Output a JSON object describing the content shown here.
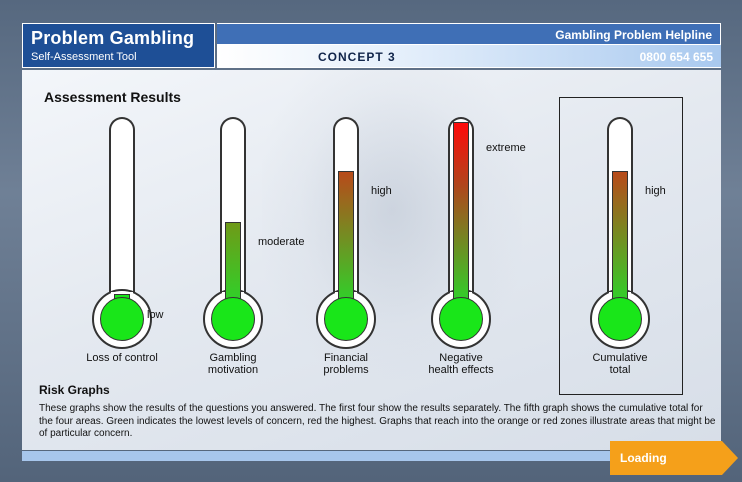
{
  "header": {
    "title": "Problem Gambling",
    "subtitle": "Self-Assessment Tool",
    "helpline_label": "Gambling Problem Helpline",
    "helpline_number": "0800 654 655",
    "concept": "CONCEPT 3"
  },
  "results": {
    "heading": "Assessment Results",
    "gauges": [
      {
        "caption": "Loss of control",
        "level": "low",
        "fraction": 0.0
      },
      {
        "caption": "Gambling\nmotivation",
        "level": "moderate",
        "fraction": 0.43
      },
      {
        "caption": "Financial\nproblems",
        "level": "high",
        "fraction": 0.72
      },
      {
        "caption": "Negative\nhealth effects",
        "level": "extreme",
        "fraction": 1.0
      },
      {
        "caption": "Cumulative\ntotal",
        "level": "high",
        "fraction": 0.72
      }
    ]
  },
  "risk": {
    "heading": "Risk Graphs",
    "text": "These graphs show the results of the questions you answered. The first four show the results separately. The fifth graph shows the cumulative total for the four areas.  Green indicates the lowest levels of concern, red the highest. Graphs that reach into the orange or red zones illustrate areas that might be of particular concern."
  },
  "footer": {
    "loading_label": "Loading"
  },
  "colors": {
    "brand_blue": "#1e4f96",
    "bulb_green": "#19e619",
    "loading_orange": "#f5a01a"
  }
}
